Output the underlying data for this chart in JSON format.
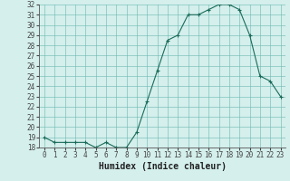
{
  "x": [
    0,
    1,
    2,
    3,
    4,
    5,
    6,
    7,
    8,
    9,
    10,
    11,
    12,
    13,
    14,
    15,
    16,
    17,
    18,
    19,
    20,
    21,
    22,
    23
  ],
  "y": [
    19.0,
    18.5,
    18.5,
    18.5,
    18.5,
    18.0,
    18.5,
    18.0,
    18.0,
    19.5,
    22.5,
    25.5,
    28.5,
    29.0,
    31.0,
    31.0,
    31.5,
    32.0,
    32.0,
    31.5,
    29.0,
    25.0,
    24.5,
    23.0
  ],
  "line_color": "#1a6b5a",
  "marker": "+",
  "marker_color": "#1a6b5a",
  "bg_color": "#d4efec",
  "grid_color": "#6ab8b0",
  "xlabel": "Humidex (Indice chaleur)",
  "ylim": [
    18,
    32
  ],
  "xlim": [
    -0.5,
    23.5
  ],
  "yticks": [
    18,
    19,
    20,
    21,
    22,
    23,
    24,
    25,
    26,
    27,
    28,
    29,
    30,
    31,
    32
  ],
  "xticks": [
    0,
    1,
    2,
    3,
    4,
    5,
    6,
    7,
    8,
    9,
    10,
    11,
    12,
    13,
    14,
    15,
    16,
    17,
    18,
    19,
    20,
    21,
    22,
    23
  ],
  "tick_fontsize": 5.5,
  "label_fontsize": 7
}
